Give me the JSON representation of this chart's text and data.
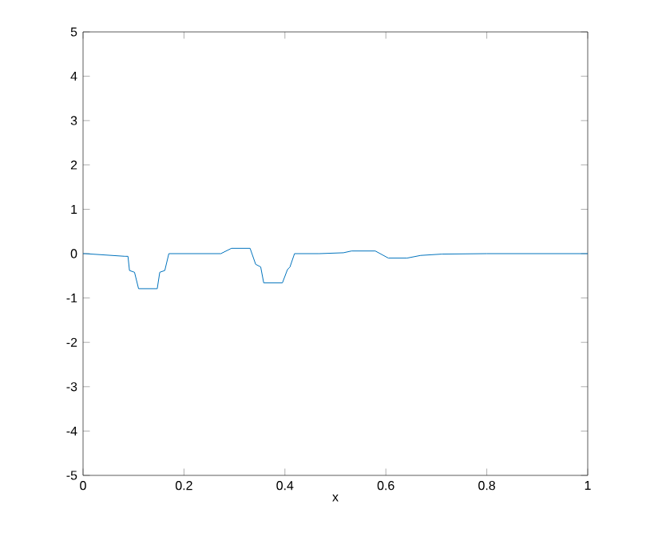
{
  "chart_data": {
    "type": "line",
    "xlabel": "x",
    "x": [
      0,
      0.004,
      0.083,
      0.089,
      0.092,
      0.102,
      0.11,
      0.147,
      0.152,
      0.162,
      0.17,
      0.273,
      0.294,
      0.331,
      0.342,
      0.352,
      0.358,
      0.395,
      0.405,
      0.41,
      0.419,
      0.468,
      0.516,
      0.532,
      0.579,
      0.605,
      0.642,
      0.669,
      0.711,
      0.8,
      0.9,
      1
    ],
    "series": [
      {
        "color": "#0072bd",
        "values": [
          0,
          0,
          -0.06,
          -0.06,
          -0.38,
          -0.42,
          -0.79,
          -0.79,
          -0.42,
          -0.38,
          0,
          0,
          0.12,
          0.12,
          -0.24,
          -0.3,
          -0.66,
          -0.66,
          -0.36,
          -0.3,
          0,
          0,
          0.02,
          0.06,
          0.06,
          -0.1,
          -0.1,
          -0.04,
          -0.01,
          0,
          0,
          0
        ]
      }
    ],
    "xlim": [
      0,
      1
    ],
    "ylim": [
      -5,
      5
    ],
    "xticks": [
      0,
      0.2,
      0.4,
      0.6,
      0.8,
      1
    ],
    "yticks": [
      -5,
      -4,
      -3,
      -2,
      -1,
      0,
      1,
      2,
      3,
      4,
      5
    ],
    "grid": false,
    "marker": "none",
    "line_style": "solid"
  }
}
